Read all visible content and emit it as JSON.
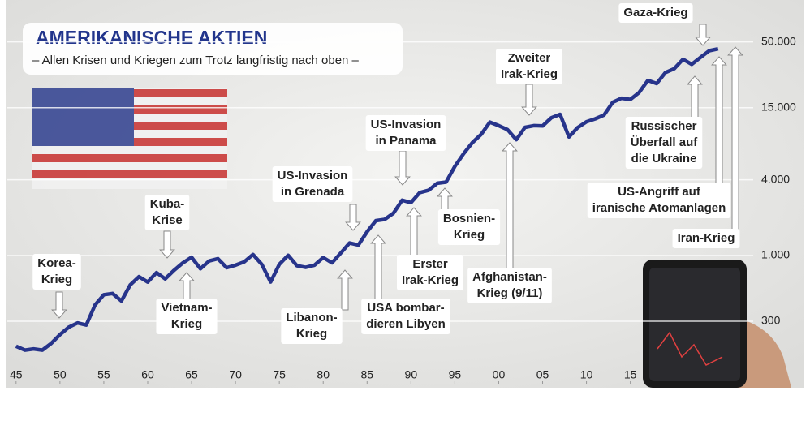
{
  "chart_data": {
    "type": "line",
    "title": "AMERIKANISCHE AKTIEN",
    "subtitle": "– Allen Krisen und Kriegen zum Trotz langfristig nach oben –",
    "x": [
      1945,
      1946,
      1947,
      1948,
      1949,
      1950,
      1951,
      1952,
      1953,
      1954,
      1955,
      1956,
      1957,
      1958,
      1959,
      1960,
      1961,
      1962,
      1963,
      1964,
      1965,
      1966,
      1967,
      1968,
      1969,
      1970,
      1971,
      1972,
      1973,
      1974,
      1975,
      1976,
      1977,
      1978,
      1979,
      1980,
      1981,
      1982,
      1983,
      1984,
      1985,
      1986,
      1987,
      1988,
      1989,
      1990,
      1991,
      1992,
      1993,
      1994,
      1995,
      1996,
      1997,
      1998,
      1999,
      2000,
      2001,
      2002,
      2003,
      2004,
      2005,
      2006,
      2007,
      2008,
      2009,
      2010,
      2011,
      2012,
      2013,
      2014,
      2015,
      2016,
      2017,
      2018,
      2019,
      2020,
      2021,
      2022,
      2023,
      2024,
      2025
    ],
    "values": [
      190,
      177,
      181,
      177,
      200,
      235,
      269,
      291,
      280,
      404,
      488,
      499,
      435,
      583,
      679,
      615,
      731,
      652,
      762,
      874,
      969,
      785,
      905,
      943,
      800,
      838,
      890,
      1020,
      850,
      616,
      852,
      1004,
      831,
      805,
      838,
      963,
      875,
      1046,
      1258,
      1211,
      1546,
      1895,
      1938,
      2168,
      2753,
      2633,
      3168,
      3301,
      3754,
      3834,
      5117,
      6448,
      7908,
      9181,
      11497,
      10787,
      10021,
      8341,
      10453,
      10783,
      10717,
      12463,
      13264,
      8776,
      10428,
      11577,
      12217,
      13104,
      16576,
      17823,
      17425,
      19762,
      24719,
      23327,
      28538,
      30606,
      36338,
      33147,
      37689,
      42544,
      44000
    ],
    "color": "#27348b",
    "log_scale": true,
    "grid": true,
    "xlim": [
      1944,
      2029
    ],
    "ylim": [
      100,
      80000
    ],
    "xticks": [
      {
        "value": 1945,
        "label": "45"
      },
      {
        "value": 1950,
        "label": "50"
      },
      {
        "value": 1955,
        "label": "55"
      },
      {
        "value": 1960,
        "label": "60"
      },
      {
        "value": 1965,
        "label": "65"
      },
      {
        "value": 1970,
        "label": "70"
      },
      {
        "value": 1975,
        "label": "75"
      },
      {
        "value": 1980,
        "label": "80"
      },
      {
        "value": 1985,
        "label": "85"
      },
      {
        "value": 1990,
        "label": "90"
      },
      {
        "value": 1995,
        "label": "95"
      },
      {
        "value": 2000,
        "label": "00"
      },
      {
        "value": 2005,
        "label": "05"
      },
      {
        "value": 2010,
        "label": "10"
      },
      {
        "value": 2015,
        "label": "15"
      }
    ],
    "yticks": [
      300,
      {
        "value": 1000,
        "label": "1.000"
      },
      {
        "value": 4000,
        "label": "4.000"
      },
      {
        "value": 15000,
        "label": "15.000"
      },
      {
        "value": 50000,
        "label": "50.000"
      }
    ],
    "annotations": [
      {
        "lines": [
          "Korea-",
          "Krieg"
        ]
      },
      {
        "lines": [
          "Kuba-",
          "Krise"
        ]
      },
      {
        "lines": [
          "Vietnam-",
          "Krieg"
        ]
      },
      {
        "lines": [
          "Libanon-",
          "Krieg"
        ]
      },
      {
        "lines": [
          "US-Invasion",
          "in Grenada"
        ]
      },
      {
        "lines": [
          "USA bombar-",
          "dieren Libyen"
        ]
      },
      {
        "lines": [
          "US-Invasion",
          "in Panama"
        ]
      },
      {
        "lines": [
          "Erster",
          "Irak-Krieg"
        ]
      },
      {
        "lines": [
          "Bosnien-",
          "Krieg"
        ]
      },
      {
        "lines": [
          "Afghanistan-",
          "Krieg (9/11)"
        ]
      },
      {
        "lines": [
          "Zweiter",
          "Irak-Krieg"
        ]
      },
      {
        "lines": [
          "Gaza-Krieg"
        ]
      },
      {
        "lines": [
          "Russischer",
          "Überfall auf",
          "die Ukraine"
        ]
      },
      {
        "lines": [
          "US-Angriff auf",
          "iranische Atomanlagen"
        ]
      },
      {
        "lines": [
          "Iran-Krieg"
        ]
      }
    ]
  }
}
